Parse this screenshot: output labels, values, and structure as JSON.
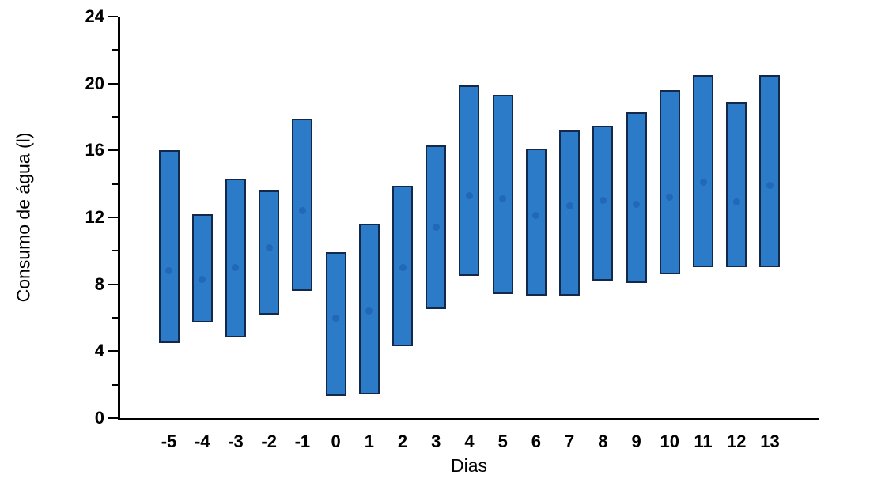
{
  "chart_data": {
    "type": "bar",
    "subtype": "floating-range-bars",
    "title": "",
    "xlabel": "Dias",
    "ylabel": "Consumo de água (l)",
    "ylim": [
      0,
      24
    ],
    "y_major_ticks": [
      0,
      4,
      8,
      12,
      16,
      20,
      24
    ],
    "y_minor_tick_step": 2,
    "grid": "off",
    "legend": "none",
    "categories": [
      "-5",
      "-4",
      "-3",
      "-2",
      "-1",
      "0",
      "1",
      "2",
      "3",
      "4",
      "5",
      "6",
      "7",
      "8",
      "9",
      "10",
      "11",
      "12",
      "13"
    ],
    "series": [
      {
        "name": "min",
        "values": [
          4.5,
          5.7,
          4.8,
          6.2,
          7.6,
          1.3,
          1.4,
          4.3,
          6.5,
          8.5,
          7.4,
          7.3,
          7.3,
          8.2,
          8.1,
          8.6,
          9.0,
          9.0,
          9.0
        ]
      },
      {
        "name": "max",
        "values": [
          16.0,
          12.2,
          14.3,
          13.6,
          17.9,
          9.9,
          11.6,
          13.9,
          16.3,
          19.9,
          19.3,
          16.1,
          17.2,
          17.5,
          18.3,
          19.6,
          20.5,
          18.9,
          20.5
        ]
      },
      {
        "name": "mean",
        "values": [
          8.8,
          8.3,
          9.0,
          10.2,
          12.4,
          6.0,
          6.4,
          9.0,
          11.4,
          13.3,
          13.1,
          12.1,
          12.7,
          13.0,
          12.8,
          13.2,
          14.1,
          12.9,
          13.9
        ]
      }
    ],
    "colors": {
      "bar_fill": "#2b7bc9",
      "bar_border": "#14294a",
      "mean_dot": "#2268b8",
      "axis": "#000000",
      "text": "#000000",
      "background": "#ffffff"
    }
  }
}
